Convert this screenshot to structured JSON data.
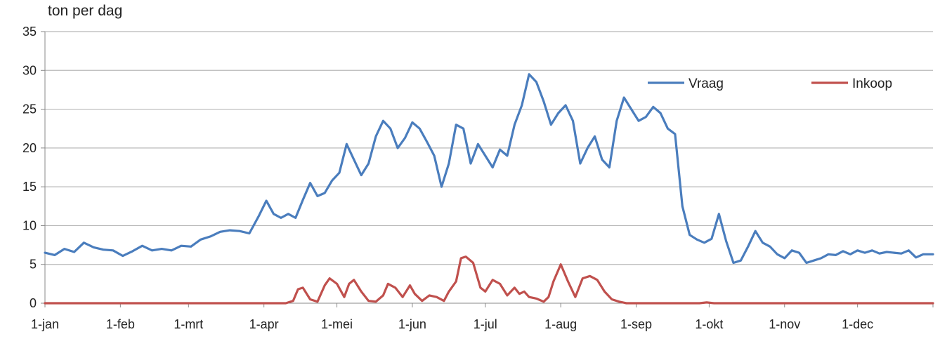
{
  "chart_data": {
    "type": "line",
    "ylabel": "ton per dag",
    "ylim": [
      0,
      35
    ],
    "y_ticks": [
      "0",
      "5",
      "10",
      "15",
      "20",
      "25",
      "30",
      "35"
    ],
    "x_tick_labels": [
      "1-jan",
      "1-feb",
      "1-mrt",
      "1-apr",
      "1-mei",
      "1-jun",
      "1-jul",
      "1-aug",
      "1-sep",
      "1-okt",
      "1-nov",
      "1-dec"
    ],
    "x_tick_days": [
      1,
      32,
      60,
      91,
      121,
      152,
      182,
      213,
      244,
      274,
      305,
      335
    ],
    "x_range_days": [
      1,
      366
    ],
    "grid": "horizontal",
    "legend_position": "top-right",
    "series": [
      {
        "name": "Vraag",
        "color": "#4a7dbd",
        "points": [
          [
            1,
            6.5
          ],
          [
            5,
            6.2
          ],
          [
            9,
            7.0
          ],
          [
            13,
            6.6
          ],
          [
            17,
            7.8
          ],
          [
            21,
            7.2
          ],
          [
            25,
            6.9
          ],
          [
            29,
            6.8
          ],
          [
            33,
            6.1
          ],
          [
            37,
            6.7
          ],
          [
            41,
            7.4
          ],
          [
            45,
            6.8
          ],
          [
            49,
            7.0
          ],
          [
            53,
            6.8
          ],
          [
            57,
            7.4
          ],
          [
            61,
            7.3
          ],
          [
            65,
            8.2
          ],
          [
            69,
            8.6
          ],
          [
            73,
            9.2
          ],
          [
            77,
            9.4
          ],
          [
            81,
            9.3
          ],
          [
            85,
            9.0
          ],
          [
            89,
            11.3
          ],
          [
            92,
            13.2
          ],
          [
            95,
            11.5
          ],
          [
            98,
            11.0
          ],
          [
            101,
            11.5
          ],
          [
            104,
            11.0
          ],
          [
            107,
            13.3
          ],
          [
            110,
            15.5
          ],
          [
            113,
            13.8
          ],
          [
            116,
            14.2
          ],
          [
            119,
            15.8
          ],
          [
            122,
            16.8
          ],
          [
            125,
            20.5
          ],
          [
            128,
            18.5
          ],
          [
            131,
            16.5
          ],
          [
            134,
            18.0
          ],
          [
            137,
            21.5
          ],
          [
            140,
            23.5
          ],
          [
            143,
            22.5
          ],
          [
            146,
            20.0
          ],
          [
            149,
            21.3
          ],
          [
            152,
            23.3
          ],
          [
            155,
            22.5
          ],
          [
            158,
            20.8
          ],
          [
            161,
            19.0
          ],
          [
            164,
            15.0
          ],
          [
            167,
            18.0
          ],
          [
            170,
            23.0
          ],
          [
            173,
            22.5
          ],
          [
            176,
            18.0
          ],
          [
            179,
            20.5
          ],
          [
            182,
            19.0
          ],
          [
            185,
            17.5
          ],
          [
            188,
            19.8
          ],
          [
            191,
            19.0
          ],
          [
            194,
            23.0
          ],
          [
            197,
            25.5
          ],
          [
            200,
            29.5
          ],
          [
            203,
            28.5
          ],
          [
            206,
            26.0
          ],
          [
            209,
            23.0
          ],
          [
            212,
            24.5
          ],
          [
            215,
            25.5
          ],
          [
            218,
            23.5
          ],
          [
            221,
            18.0
          ],
          [
            224,
            20.0
          ],
          [
            227,
            21.5
          ],
          [
            230,
            18.5
          ],
          [
            233,
            17.5
          ],
          [
            236,
            23.5
          ],
          [
            239,
            26.5
          ],
          [
            242,
            25.0
          ],
          [
            245,
            23.5
          ],
          [
            248,
            24.0
          ],
          [
            251,
            25.3
          ],
          [
            254,
            24.5
          ],
          [
            257,
            22.5
          ],
          [
            260,
            21.8
          ],
          [
            263,
            12.5
          ],
          [
            266,
            8.8
          ],
          [
            269,
            8.2
          ],
          [
            272,
            7.8
          ],
          [
            275,
            8.3
          ],
          [
            278,
            11.5
          ],
          [
            281,
            8.0
          ],
          [
            284,
            5.2
          ],
          [
            287,
            5.5
          ],
          [
            290,
            7.3
          ],
          [
            293,
            9.3
          ],
          [
            296,
            7.8
          ],
          [
            299,
            7.3
          ],
          [
            302,
            6.3
          ],
          [
            305,
            5.8
          ],
          [
            308,
            6.8
          ],
          [
            311,
            6.5
          ],
          [
            314,
            5.2
          ],
          [
            317,
            5.5
          ],
          [
            320,
            5.8
          ],
          [
            323,
            6.3
          ],
          [
            326,
            6.2
          ],
          [
            329,
            6.7
          ],
          [
            332,
            6.3
          ],
          [
            335,
            6.8
          ],
          [
            338,
            6.5
          ],
          [
            341,
            6.8
          ],
          [
            344,
            6.4
          ],
          [
            347,
            6.6
          ],
          [
            350,
            6.5
          ],
          [
            353,
            6.4
          ],
          [
            356,
            6.8
          ],
          [
            359,
            5.9
          ],
          [
            362,
            6.3
          ],
          [
            366,
            6.3
          ]
        ]
      },
      {
        "name": "Inkoop",
        "color": "#c0504d",
        "points": [
          [
            1,
            0
          ],
          [
            100,
            0
          ],
          [
            103,
            0.3
          ],
          [
            105,
            1.8
          ],
          [
            107,
            2.0
          ],
          [
            110,
            0.5
          ],
          [
            113,
            0.2
          ],
          [
            116,
            2.3
          ],
          [
            118,
            3.2
          ],
          [
            121,
            2.5
          ],
          [
            124,
            0.8
          ],
          [
            126,
            2.5
          ],
          [
            128,
            3.0
          ],
          [
            131,
            1.5
          ],
          [
            134,
            0.3
          ],
          [
            137,
            0.2
          ],
          [
            140,
            1.0
          ],
          [
            142,
            2.5
          ],
          [
            145,
            2.0
          ],
          [
            148,
            0.8
          ],
          [
            151,
            2.3
          ],
          [
            153,
            1.2
          ],
          [
            156,
            0.3
          ],
          [
            159,
            1.0
          ],
          [
            162,
            0.8
          ],
          [
            165,
            0.3
          ],
          [
            167,
            1.5
          ],
          [
            170,
            2.8
          ],
          [
            172,
            5.8
          ],
          [
            174,
            6.0
          ],
          [
            177,
            5.2
          ],
          [
            180,
            2.0
          ],
          [
            182,
            1.5
          ],
          [
            185,
            3.0
          ],
          [
            188,
            2.5
          ],
          [
            191,
            1.0
          ],
          [
            194,
            2.0
          ],
          [
            196,
            1.2
          ],
          [
            198,
            1.5
          ],
          [
            200,
            0.8
          ],
          [
            203,
            0.6
          ],
          [
            206,
            0.2
          ],
          [
            208,
            0.8
          ],
          [
            210,
            2.8
          ],
          [
            213,
            5.0
          ],
          [
            216,
            2.8
          ],
          [
            219,
            0.8
          ],
          [
            222,
            3.2
          ],
          [
            225,
            3.5
          ],
          [
            228,
            3.0
          ],
          [
            231,
            1.5
          ],
          [
            234,
            0.5
          ],
          [
            237,
            0.2
          ],
          [
            240,
            0
          ],
          [
            270,
            0
          ],
          [
            273,
            0.1
          ],
          [
            276,
            0
          ],
          [
            366,
            0
          ]
        ]
      }
    ]
  }
}
